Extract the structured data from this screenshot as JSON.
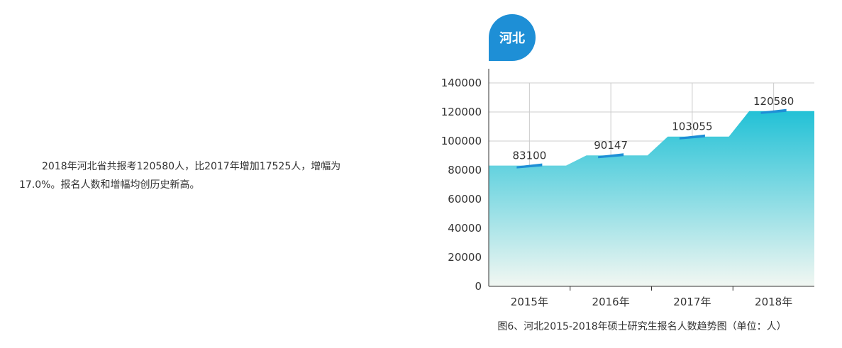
{
  "article": {
    "paragraph": "2018年河北省共报考120580人，比2017年增加17525人，增幅为17.0%。报名人数和增幅均创历史新高。"
  },
  "badge": {
    "label": "河北"
  },
  "caption": "图6、河北2015-2018年硕士研究生报名人数趋势图（单位：人）",
  "colors": {
    "area_top": "#22c1d6",
    "area_bottom": "#f2f7f2",
    "marker": "#1e8fd6",
    "badge": "#1e8fd6",
    "grid": "#cccccc",
    "axis": "#333333"
  },
  "chart_data": {
    "type": "area",
    "categories": [
      "2015年",
      "2016年",
      "2017年",
      "2018年"
    ],
    "values": [
      83100,
      90147,
      103055,
      120580
    ],
    "ylim": [
      0,
      140000
    ],
    "yticks": [
      "0",
      "20000",
      "40000",
      "60000",
      "80000",
      "100000",
      "120000",
      "140000"
    ],
    "data_labels": [
      "83100",
      "90147",
      "103055",
      "120580"
    ],
    "grid": true,
    "title": "",
    "xlabel": "",
    "ylabel": ""
  }
}
